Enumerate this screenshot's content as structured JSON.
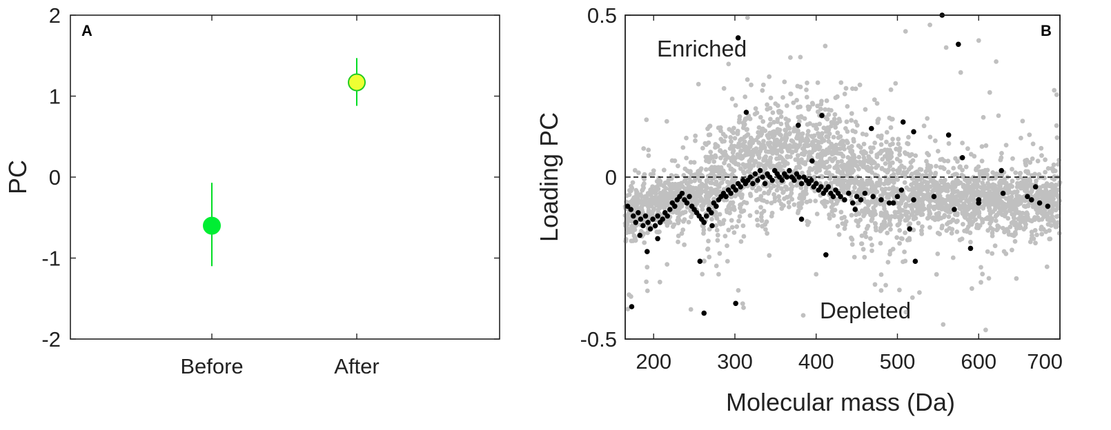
{
  "chart_data": [
    {
      "panel": "A",
      "type": "scatter",
      "ylabel": "PC",
      "xlabel": "",
      "categories": [
        "Before",
        "After"
      ],
      "ylim": [
        -2,
        2
      ],
      "yticks": [
        "-2",
        "-1",
        "0",
        "1",
        "2"
      ],
      "grid": false,
      "points": [
        {
          "category": "Before",
          "mean": -0.6,
          "err_low": -1.1,
          "err_high": -0.07,
          "fill": "#00ee33",
          "edge": "#00ee33"
        },
        {
          "category": "After",
          "mean": 1.17,
          "err_low": 0.88,
          "err_high": 1.47,
          "fill": "#eeff33",
          "edge": "#22cc22"
        }
      ]
    },
    {
      "panel": "B",
      "type": "scatter",
      "ylabel": "Loading PC",
      "xlabel": "Molecular mass (Da)",
      "xlim": [
        165,
        700
      ],
      "ylim": [
        -0.5,
        0.5
      ],
      "xticks": [
        "200",
        "300",
        "400",
        "500",
        "600",
        "700"
      ],
      "yticks": [
        "-0.5",
        "0",
        "0.5"
      ],
      "reference_line_y": 0,
      "grid": false,
      "annotations": {
        "top": "Enriched",
        "bottom": "Depleted"
      },
      "colors": {
        "background_series": "#c0c0c0",
        "highlight_series": "#000000"
      },
      "background_series_sample": [
        [
          200,
          0.02
        ],
        [
          260,
          -0.1
        ],
        [
          300,
          0.12
        ],
        [
          330,
          0.06
        ],
        [
          350,
          0.08
        ],
        [
          380,
          0.1
        ],
        [
          400,
          0.15
        ],
        [
          420,
          0.05
        ],
        [
          450,
          -0.05
        ],
        [
          480,
          0.12
        ],
        [
          500,
          0.02
        ],
        [
          520,
          -0.08
        ],
        [
          550,
          0.08
        ],
        [
          580,
          -0.05
        ],
        [
          620,
          -0.1
        ],
        [
          650,
          -0.06
        ],
        [
          690,
          -0.08
        ],
        [
          230,
          -0.2
        ],
        [
          280,
          -0.3
        ],
        [
          400,
          -0.3
        ],
        [
          480,
          -0.35
        ],
        [
          510,
          0.45
        ],
        [
          540,
          0.47
        ],
        [
          560,
          0.4
        ]
      ],
      "highlight_series": [
        [
          168,
          -0.09
        ],
        [
          172,
          -0.1
        ],
        [
          175,
          -0.12
        ],
        [
          178,
          -0.14
        ],
        [
          181,
          -0.11
        ],
        [
          184,
          -0.13
        ],
        [
          187,
          -0.15
        ],
        [
          190,
          -0.12
        ],
        [
          193,
          -0.14
        ],
        [
          196,
          -0.16
        ],
        [
          199,
          -0.13
        ],
        [
          202,
          -0.15
        ],
        [
          205,
          -0.12
        ],
        [
          208,
          -0.14
        ],
        [
          211,
          -0.13
        ],
        [
          214,
          -0.11
        ],
        [
          217,
          -0.12
        ],
        [
          220,
          -0.1
        ],
        [
          223,
          -0.08
        ],
        [
          226,
          -0.09
        ],
        [
          229,
          -0.07
        ],
        [
          232,
          -0.06
        ],
        [
          235,
          -0.05
        ],
        [
          238,
          -0.07
        ],
        [
          241,
          -0.08
        ],
        [
          244,
          -0.06
        ],
        [
          247,
          -0.09
        ],
        [
          250,
          -0.1
        ],
        [
          253,
          -0.11
        ],
        [
          256,
          -0.12
        ],
        [
          259,
          -0.13
        ],
        [
          262,
          -0.14
        ],
        [
          265,
          -0.12
        ],
        [
          268,
          -0.1
        ],
        [
          271,
          -0.11
        ],
        [
          274,
          -0.08
        ],
        [
          277,
          -0.09
        ],
        [
          280,
          -0.07
        ],
        [
          283,
          -0.06
        ],
        [
          286,
          -0.05
        ],
        [
          289,
          -0.06
        ],
        [
          292,
          -0.04
        ],
        [
          295,
          -0.05
        ],
        [
          298,
          -0.03
        ],
        [
          301,
          -0.04
        ],
        [
          304,
          -0.02
        ],
        [
          307,
          -0.03
        ],
        [
          310,
          -0.01
        ],
        [
          313,
          -0.02
        ],
        [
          316,
          -0.01
        ],
        [
          319,
          0.0
        ],
        [
          322,
          -0.02
        ],
        [
          325,
          0.01
        ],
        [
          328,
          -0.01
        ],
        [
          331,
          0.02
        ],
        [
          334,
          0.0
        ],
        [
          337,
          -0.02
        ],
        [
          340,
          0.01
        ],
        [
          343,
          0.0
        ],
        [
          346,
          -0.01
        ],
        [
          349,
          0.02
        ],
        [
          352,
          0.01
        ],
        [
          355,
          0.0
        ],
        [
          358,
          -0.01
        ],
        [
          361,
          0.01
        ],
        [
          364,
          0.0
        ],
        [
          367,
          0.02
        ],
        [
          370,
          0.0
        ],
        [
          373,
          -0.01
        ],
        [
          376,
          0.01
        ],
        [
          379,
          0.0
        ],
        [
          382,
          -0.02
        ],
        [
          385,
          0.0
        ],
        [
          388,
          -0.01
        ],
        [
          391,
          -0.02
        ],
        [
          394,
          -0.01
        ],
        [
          397,
          -0.03
        ],
        [
          400,
          -0.02
        ],
        [
          403,
          -0.04
        ],
        [
          406,
          -0.03
        ],
        [
          409,
          -0.05
        ],
        [
          412,
          -0.04
        ],
        [
          415,
          -0.03
        ],
        [
          418,
          -0.05
        ],
        [
          421,
          -0.06
        ],
        [
          424,
          -0.04
        ],
        [
          427,
          -0.05
        ],
        [
          430,
          -0.06
        ],
        [
          435,
          -0.07
        ],
        [
          440,
          -0.05
        ],
        [
          445,
          -0.08
        ],
        [
          450,
          -0.06
        ],
        [
          455,
          -0.07
        ],
        [
          460,
          -0.05
        ],
        [
          470,
          -0.06
        ],
        [
          480,
          -0.07
        ],
        [
          490,
          -0.08
        ],
        [
          500,
          -0.06
        ],
        [
          505,
          -0.04
        ],
        [
          520,
          -0.07
        ],
        [
          545,
          -0.06
        ],
        [
          600,
          -0.07
        ],
        [
          630,
          -0.05
        ],
        [
          660,
          -0.06
        ],
        [
          665,
          -0.07
        ],
        [
          675,
          -0.08
        ],
        [
          173,
          -0.4
        ],
        [
          183,
          -0.18
        ],
        [
          192,
          -0.23
        ],
        [
          205,
          -0.19
        ],
        [
          257,
          -0.26
        ],
        [
          262,
          -0.42
        ],
        [
          272,
          -0.15
        ],
        [
          301,
          -0.39
        ],
        [
          304,
          0.43
        ],
        [
          314,
          0.2
        ],
        [
          378,
          0.16
        ],
        [
          382,
          -0.13
        ],
        [
          395,
          0.05
        ],
        [
          407,
          0.19
        ],
        [
          412,
          -0.24
        ],
        [
          448,
          -0.1
        ],
        [
          468,
          0.15
        ],
        [
          495,
          -0.08
        ],
        [
          507,
          0.17
        ],
        [
          520,
          0.14
        ],
        [
          522,
          -0.26
        ],
        [
          515,
          -0.16
        ],
        [
          555,
          0.5
        ],
        [
          563,
          0.13
        ],
        [
          570,
          -0.1
        ],
        [
          575,
          0.41
        ],
        [
          580,
          0.06
        ],
        [
          590,
          -0.22
        ],
        [
          600,
          -0.08
        ],
        [
          628,
          0.02
        ],
        [
          685,
          -0.09
        ],
        [
          670,
          -0.03
        ]
      ]
    }
  ]
}
